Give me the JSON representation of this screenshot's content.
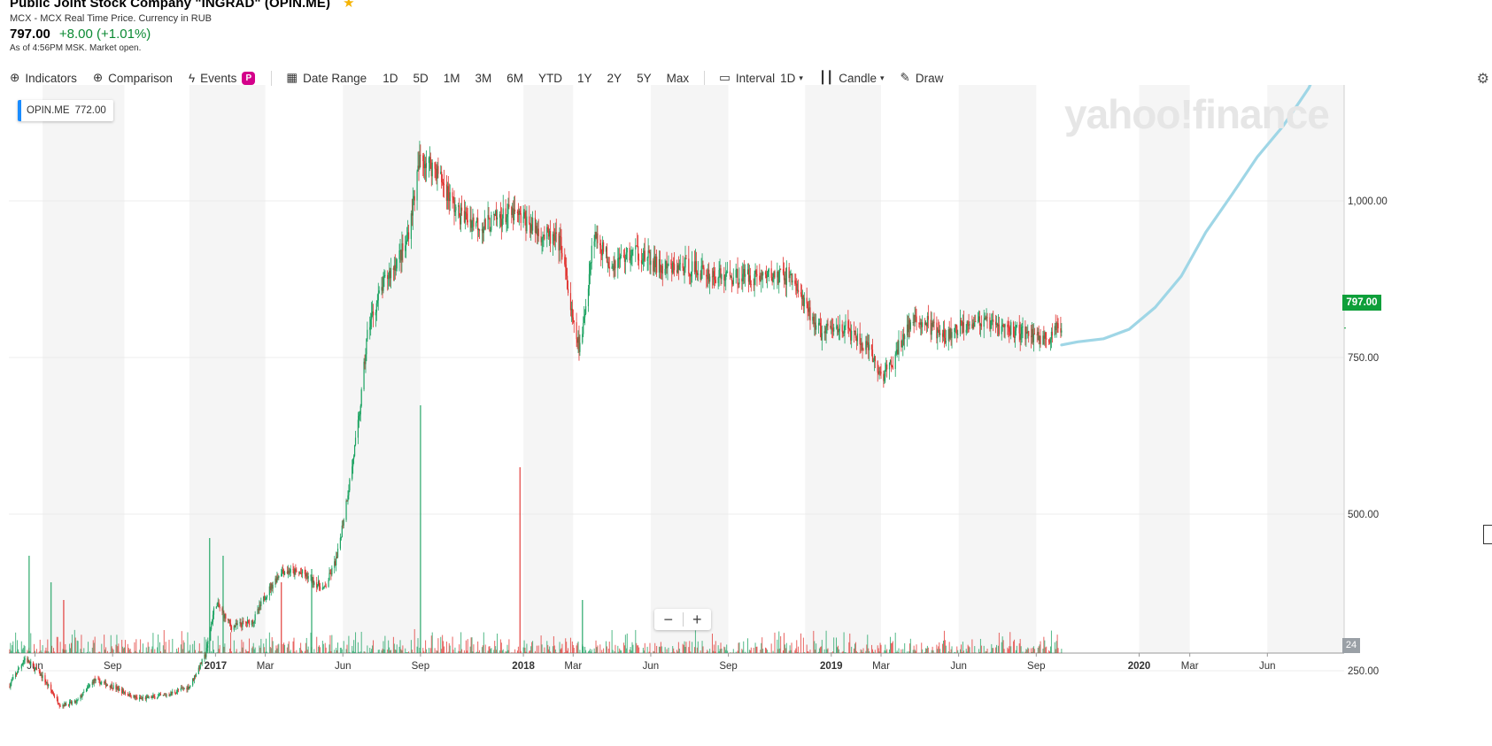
{
  "header": {
    "title": "Public Joint Stock Company \"INGRAD\" (OPIN.ME)",
    "exchange": "MCX - MCX Real Time Price. Currency in RUB",
    "price": "797.00",
    "change": "+8.00 (+1.01%)",
    "as_of": "As of 4:56PM MSK. Market open."
  },
  "toolbar": {
    "indicators": "Indicators",
    "comparison": "Comparison",
    "events": "Events",
    "events_badge": "P",
    "date_range": "Date Range",
    "ranges": [
      "1D",
      "5D",
      "1M",
      "3M",
      "6M",
      "YTD",
      "1Y",
      "2Y",
      "5Y",
      "Max"
    ],
    "interval_label": "Interval",
    "interval_value": "1D",
    "chart_type": "Candle",
    "draw": "Draw"
  },
  "overlay": {
    "ticker": "OPIN.ME",
    "ticker_value": "772.00",
    "watermark": "yahoo!finance",
    "price_tag": "797.00",
    "volume_tag": "24"
  },
  "colors": {
    "up": "#1aa260",
    "down": "#e0312e",
    "band": "#f5f5f5",
    "annotation": "#9fd6e6",
    "price_tag": "#0e9f3a"
  },
  "chart_data": {
    "type": "candlestick",
    "title": "",
    "xlabel": "",
    "ylabel": "",
    "x_range": [
      "2016-05-01",
      "2020-08-31"
    ],
    "ylim": [
      180,
      1150
    ],
    "y_ticks": [
      250,
      500,
      750,
      1000
    ],
    "y_tick_labels": [
      "250.00",
      "500.00",
      "750.00",
      "1,000.00"
    ],
    "x_ticks": [
      {
        "date": "2016-06-01",
        "label": "Jun"
      },
      {
        "date": "2016-09-01",
        "label": "Sep"
      },
      {
        "date": "2017-01-01",
        "label": "2017"
      },
      {
        "date": "2017-03-01",
        "label": "Mar"
      },
      {
        "date": "2017-06-01",
        "label": "Jun"
      },
      {
        "date": "2017-09-01",
        "label": "Sep"
      },
      {
        "date": "2018-01-01",
        "label": "2018"
      },
      {
        "date": "2018-03-01",
        "label": "Mar"
      },
      {
        "date": "2018-06-01",
        "label": "Jun"
      },
      {
        "date": "2018-09-01",
        "label": "Sep"
      },
      {
        "date": "2019-01-01",
        "label": "2019"
      },
      {
        "date": "2019-03-01",
        "label": "Mar"
      },
      {
        "date": "2019-06-01",
        "label": "Jun"
      },
      {
        "date": "2019-09-01",
        "label": "Sep"
      },
      {
        "date": "2020-01-01",
        "label": "2020"
      },
      {
        "date": "2020-03-01",
        "label": "Mar"
      },
      {
        "date": "2020-06-01",
        "label": "Jun"
      }
    ],
    "grid": true,
    "price_path": [
      [
        "2016-05-01",
        225
      ],
      [
        "2016-05-20",
        270
      ],
      [
        "2016-06-10",
        240
      ],
      [
        "2016-07-01",
        195
      ],
      [
        "2016-07-20",
        200
      ],
      [
        "2016-08-10",
        235
      ],
      [
        "2016-09-01",
        225
      ],
      [
        "2016-10-01",
        205
      ],
      [
        "2016-11-01",
        210
      ],
      [
        "2016-12-01",
        225
      ],
      [
        "2016-12-20",
        275
      ],
      [
        "2017-01-01",
        360
      ],
      [
        "2017-01-20",
        320
      ],
      [
        "2017-02-15",
        330
      ],
      [
        "2017-03-01",
        370
      ],
      [
        "2017-03-20",
        410
      ],
      [
        "2017-04-15",
        405
      ],
      [
        "2017-05-10",
        380
      ],
      [
        "2017-05-25",
        430
      ],
      [
        "2017-06-10",
        560
      ],
      [
        "2017-06-20",
        650
      ],
      [
        "2017-07-01",
        800
      ],
      [
        "2017-07-20",
        870
      ],
      [
        "2017-08-15",
        930
      ],
      [
        "2017-09-01",
        1070
      ],
      [
        "2017-09-20",
        1050
      ],
      [
        "2017-10-15",
        980
      ],
      [
        "2017-11-15",
        960
      ],
      [
        "2017-12-15",
        980
      ],
      [
        "2018-01-01",
        970
      ],
      [
        "2018-01-20",
        950
      ],
      [
        "2018-02-15",
        930
      ],
      [
        "2018-03-01",
        800
      ],
      [
        "2018-03-10",
        760
      ],
      [
        "2018-03-25",
        950
      ],
      [
        "2018-04-15",
        900
      ],
      [
        "2018-05-15",
        920
      ],
      [
        "2018-06-15",
        890
      ],
      [
        "2018-07-15",
        895
      ],
      [
        "2018-08-15",
        880
      ],
      [
        "2018-09-15",
        880
      ],
      [
        "2018-10-15",
        880
      ],
      [
        "2018-11-15",
        880
      ],
      [
        "2018-12-01",
        830
      ],
      [
        "2018-12-20",
        790
      ],
      [
        "2019-01-15",
        800
      ],
      [
        "2019-02-15",
        760
      ],
      [
        "2019-03-01",
        720
      ],
      [
        "2019-03-15",
        740
      ],
      [
        "2019-04-01",
        800
      ],
      [
        "2019-04-20",
        810
      ],
      [
        "2019-05-15",
        780
      ],
      [
        "2019-06-15",
        810
      ],
      [
        "2019-07-15",
        800
      ],
      [
        "2019-08-15",
        790
      ],
      [
        "2019-09-15",
        780
      ],
      [
        "2019-10-01",
        800
      ]
    ],
    "volume_spikes": [
      {
        "date": "2016-05-25",
        "value": 110
      },
      {
        "date": "2016-06-20",
        "value": 80
      },
      {
        "date": "2016-07-05",
        "value": 60
      },
      {
        "date": "2016-12-25",
        "value": 130
      },
      {
        "date": "2017-01-10",
        "value": 110
      },
      {
        "date": "2017-03-20",
        "value": 80
      },
      {
        "date": "2017-04-25",
        "value": 95
      },
      {
        "date": "2017-09-01",
        "value": 280
      },
      {
        "date": "2017-12-28",
        "value": 210
      },
      {
        "date": "2018-03-12",
        "value": 60
      }
    ],
    "annotation_path": [
      [
        "2019-10-01",
        770
      ],
      [
        "2019-10-20",
        775
      ],
      [
        "2019-11-20",
        780
      ],
      [
        "2019-12-20",
        795
      ],
      [
        "2020-01-20",
        830
      ],
      [
        "2020-02-20",
        880
      ],
      [
        "2020-03-20",
        950
      ],
      [
        "2020-04-20",
        1010
      ],
      [
        "2020-05-20",
        1070
      ],
      [
        "2020-06-20",
        1120
      ],
      [
        "2020-07-20",
        1180
      ],
      [
        "2020-08-10",
        1240
      ]
    ]
  }
}
